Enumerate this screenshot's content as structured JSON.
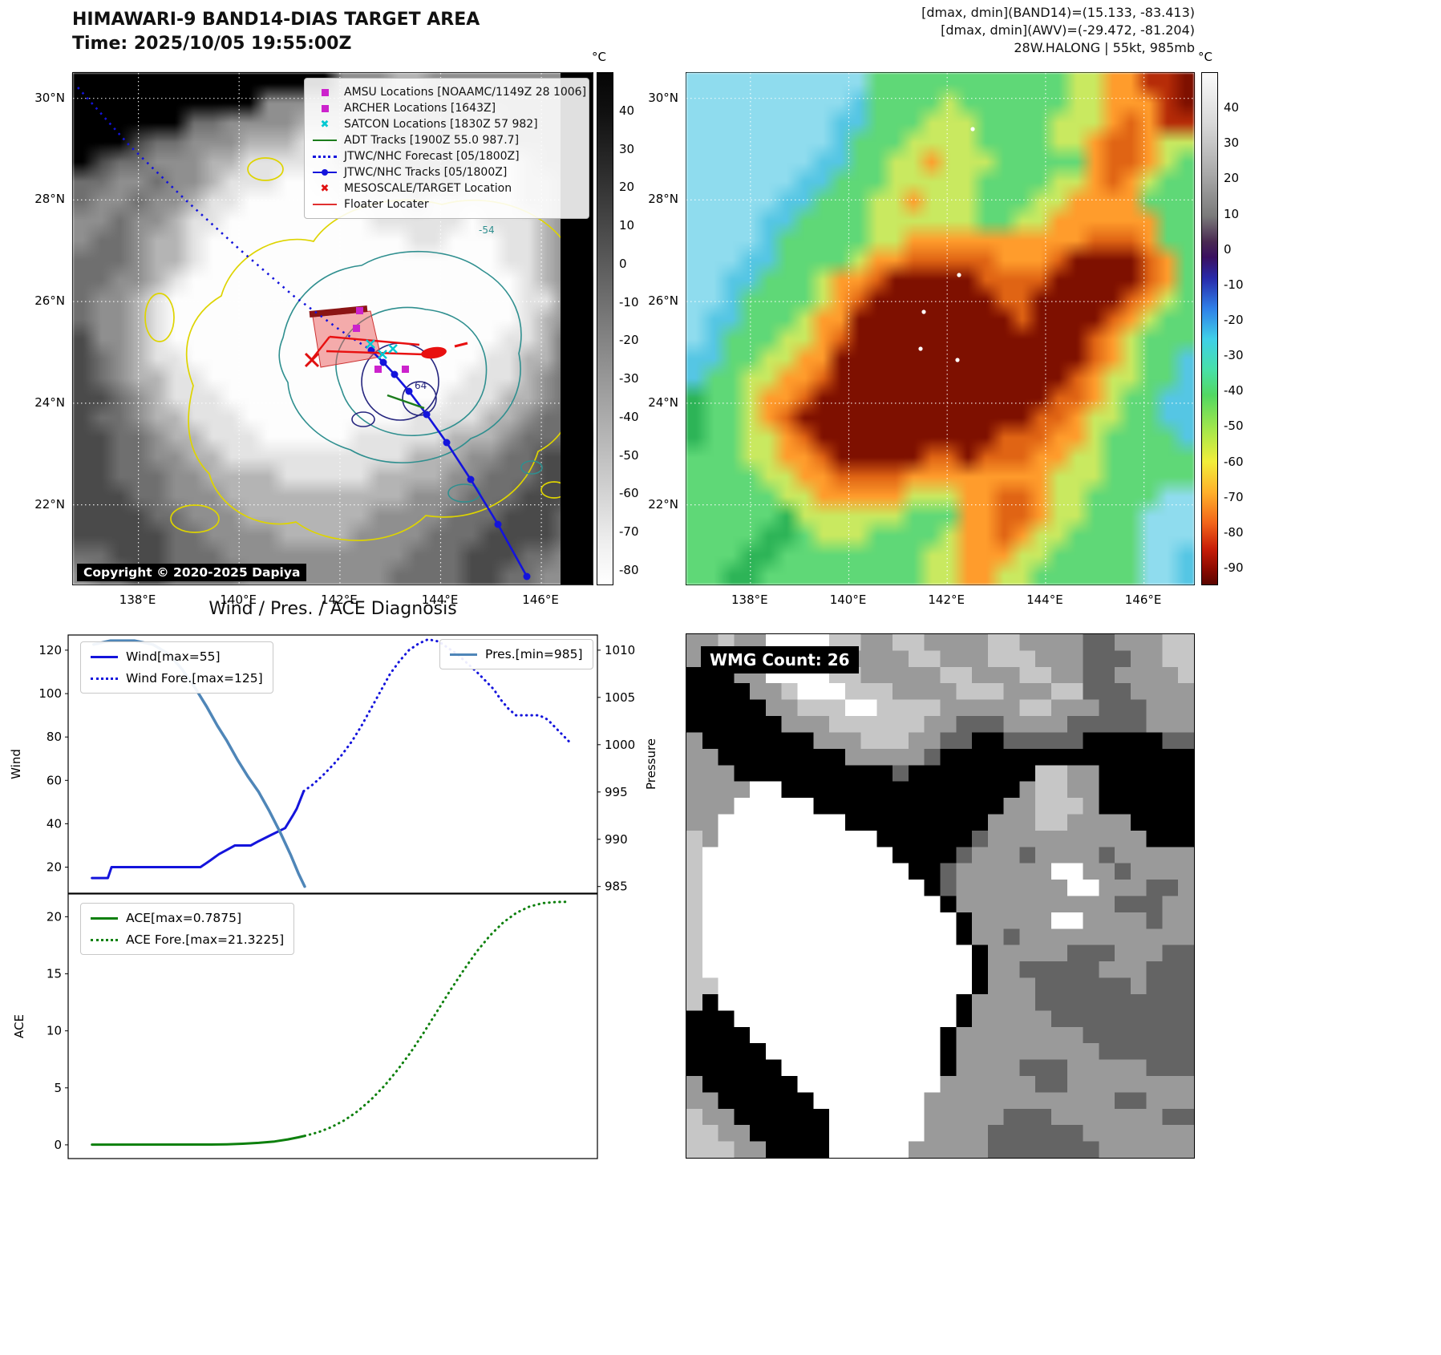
{
  "panel_tl": {
    "title_line1": "HIMAWARI-9 BAND14-DIAS TARGET AREA",
    "title_line2": "Time: 2025/10/05 19:55:00Z",
    "copyright": "Copyright © 2020-2025 Dapiya",
    "contour_labels": [
      "-54",
      "64"
    ],
    "legend": [
      {
        "marker": "square",
        "color": "#cc22cc",
        "label": "AMSU Locations [NOAAMC/1149Z 28 1006]"
      },
      {
        "marker": "square",
        "color": "#cc22cc",
        "label": "ARCHER Locations [1643Z]"
      },
      {
        "marker": "x",
        "color": "#00c8d2",
        "label": "SATCON Locations [1830Z 57 982]"
      },
      {
        "marker": "line",
        "color": "#1c7c1c",
        "label": "ADT Tracks [1900Z 55.0 987.7]"
      },
      {
        "marker": "dotted",
        "color": "#1414dc",
        "label": "JTWC/NHC Forecast [05/1800Z]"
      },
      {
        "marker": "line-dot",
        "color": "#1414dc",
        "label": "JTWC/NHC Tracks [05/1800Z]"
      },
      {
        "marker": "x",
        "color": "#e01010",
        "label": "MESOSCALE/TARGET Location"
      },
      {
        "marker": "line",
        "color": "#e03030",
        "label": "Floater Locater"
      }
    ],
    "lon_range": [
      136.7,
      147.05
    ],
    "lat_range": [
      30.5,
      20.4
    ],
    "lon_ticks": [
      {
        "v": 138,
        "label": "138°E"
      },
      {
        "v": 140,
        "label": "140°E"
      },
      {
        "v": 142,
        "label": "142°E"
      },
      {
        "v": 144,
        "label": "144°E"
      },
      {
        "v": 146,
        "label": "146°E"
      }
    ],
    "lat_ticks": [
      {
        "v": 30,
        "label": "30°N"
      },
      {
        "v": 28,
        "label": "28°N"
      },
      {
        "v": 26,
        "label": "26°N"
      },
      {
        "v": 24,
        "label": "24°N"
      },
      {
        "v": 22,
        "label": "22°N"
      }
    ],
    "colorbar": {
      "unit": "°C",
      "range": [
        50,
        -84
      ],
      "ticks": [
        40,
        30,
        20,
        10,
        0,
        -10,
        -20,
        -30,
        -40,
        -50,
        -60,
        -70,
        -80
      ],
      "gradient": [
        [
          0,
          "#050505"
        ],
        [
          8,
          "#111111"
        ],
        [
          20,
          "#2e2e2e"
        ],
        [
          35,
          "#555555"
        ],
        [
          50,
          "#7e7e7e"
        ],
        [
          65,
          "#a5a5a5"
        ],
        [
          80,
          "#cdcdcd"
        ],
        [
          92,
          "#efefef"
        ],
        [
          100,
          "#ffffff"
        ]
      ]
    },
    "image_grid": {
      "bg": "#8f8f8f",
      "palette": {
        "K": "#000000",
        "d": "#4a4a4a",
        "g": "#6f6f6f",
        "m": "#8f8f8f",
        "l": "#b4b4b4",
        "w": "#e3e3e3",
        "W": "#fdfdfd"
      },
      "rows": [
        "KKKKKKKKKKKKKKmmmllmmmmmmmmm",
        "KKKKKKKKKKmmmmmlllmmmmmmmmmm",
        "KKKKKKggmmmmlllllmmmmllmmmmm",
        "KKKdggmmmlllwwllmmmmmllmmmmm",
        "Kdggmmmllwwwwwlllmmmmmwwlmmm",
        "ggmmgmmlwwwWWwwwllmmmwwwllmm",
        "gmmgmmlwwWWWWWwwwwlwwwwwllmm",
        "mmgmmlwwWWWWWWWWwwwwwWwwwlmm",
        "mggmllwWWWWWWWWWWWwwWWWwwlmm",
        "gggmllwWWWWWWWWWWWWWWWWwwlmm",
        "ggmmlwWWWWWWWWWWWWWWWWWWwlmg",
        "gmmlwWWWWWWWWWWWWWWWWWWWwwmg",
        "gmmlwWWWWWWWWWWWWWWWWWWWwlmg",
        "dmmlwWWWWWWWWWWWWWWWWWWwwlgg",
        "dgmlwwWWWWWWWWWWWWWWWWwwllgg",
        "dgmllwwWWWWWWWWWWWWWWwwwlmgg",
        "ddgmlwwwWWWWWWWWWWWWwwwllmgg",
        "dggmllwwwWWWWWWWWWwwwwllmggg",
        "ddggmllwwwWWWWWwwwwwlllmgggd",
        "ddggmmllwwwwwwwwwwlllmmggddg",
        "ddgggmmllllwwwwwllllmmgggddg",
        "dddggmmmllllllllllmmmgggdddg",
        "ddddggmmmlllllllmmmmgggdddgg",
        "dddddggmmmmllllmmmmgggddddgg",
        "ggdddgggmmmmmmmmmmgggdddggmm",
        "mggddggggmmmmmmmmggggddggmmm"
      ]
    }
  },
  "panel_tr": {
    "header1": "[dmax, dmin](BAND14)=(15.133, -83.413)",
    "header2": "[dmax, dmin](AWV)=(-29.472, -81.204)",
    "header3": "28W.HALONG | 55kt, 985mb",
    "lon_range": [
      136.7,
      147.05
    ],
    "lat_range": [
      30.5,
      20.4
    ],
    "lon_ticks": [
      {
        "v": 138,
        "label": "138°E"
      },
      {
        "v": 140,
        "label": "140°E"
      },
      {
        "v": 142,
        "label": "142°E"
      },
      {
        "v": 144,
        "label": "144°E"
      },
      {
        "v": 146,
        "label": "146°E"
      }
    ],
    "lat_ticks": [
      {
        "v": 30,
        "label": "30°N"
      },
      {
        "v": 28,
        "label": "28°N"
      },
      {
        "v": 26,
        "label": "26°N"
      },
      {
        "v": 24,
        "label": "24°N"
      },
      {
        "v": 22,
        "label": "22°N"
      }
    ],
    "colorbar": {
      "unit": "°C",
      "range": [
        50,
        -95
      ],
      "ticks": [
        40,
        30,
        20,
        10,
        0,
        -10,
        -20,
        -30,
        -40,
        -50,
        -60,
        -70,
        -80,
        -90
      ],
      "gradient": [
        [
          0,
          "#fafafa"
        ],
        [
          10,
          "#d8d8d8"
        ],
        [
          20,
          "#a8a8a8"
        ],
        [
          28,
          "#7a7a7a"
        ],
        [
          33,
          "#4a2a52"
        ],
        [
          36,
          "#3a1060"
        ],
        [
          40,
          "#2828a8"
        ],
        [
          46,
          "#2f7fe8"
        ],
        [
          52,
          "#3fd0e8"
        ],
        [
          58,
          "#48e0a8"
        ],
        [
          63,
          "#52d862"
        ],
        [
          70,
          "#a8e84a"
        ],
        [
          76,
          "#f2ee3a"
        ],
        [
          82,
          "#ffb02a"
        ],
        [
          88,
          "#f2641a"
        ],
        [
          93,
          "#c81e08"
        ],
        [
          97,
          "#8c0a00"
        ],
        [
          100,
          "#5a0500"
        ]
      ]
    },
    "image_grid": {
      "bg": "#5fd877",
      "palette": {
        "c": "#8fdcee",
        "C": "#55c6e4",
        "g": "#5fd877",
        "G": "#2db457",
        "y": "#c9e960",
        "o": "#ff9c2c",
        "O": "#e06414",
        "r": "#b62c08",
        "R": "#7e1000"
      },
      "rows": [
        "ccccccccccgggggggggggyyoorrR",
        "cccccccccCggggyggggggyyooorR",
        "ccccccccCCgggyyyggggyyyoOorr",
        "ccccccccCgggyyyyggggyyoOOoyy",
        "cccccccCCggyyoyyygggggoOOoyg",
        "ccccccCCgggyyyyyggggyyoOoygg",
        "cccccCCgggyyoyyygggyyooooggg",
        "ccccCCggggyyyyyyggyyoooooogg",
        "ccccCgggggyyooooooooooOOOogg",
        "cccCCggggyooOOOOOoooORRRROog",
        "ccCCgggyooORRRRROOOORRRRROog",
        "ccCggggyoORRRRRRROORRRRROoyg",
        "cCCgggyooRRRRRRRRRORRRROoygg",
        "cCgggyyoORRRRRRRRRRRRROoyggg",
        "CCggyyooRRRRRRRRRRRRRROoyggC",
        "CggyyooORRRRRRRRRRRRROoyyggC",
        "GggyooORRRRRRRRRRRRROOoyggCC",
        "GggyoORRRRRRRRRRRRROOoyyggCC",
        "GggyyoORRRRRRRRRROOOooyggggC",
        "gggyyooORRRRROOROOOooyyggggg",
        "ggggyyooOOOOooooooooyyyggggg",
        "gggggyyoooooyyyooOOoyyggggcc",
        "gggggGyyyyyygggooOOoyygggccc",
        "ggggGGgyyyggggyooOoyyggggccc",
        "gggGGggggggggyyoooyygggggccC",
        "ggGGgggggggggyyooyyggggggccC"
      ]
    }
  },
  "wmg": {
    "label": "WMG Count: 26",
    "image_grid": {
      "bg": "#9a9a9a",
      "palette": {
        "w": "#ffffff",
        "l": "#c6c6c6",
        "g": "#9a9a9a",
        "d": "#646464",
        "K": "#000000"
      },
      "rows": [
        "gglggwwwwllggllggggllggggddgggll",
        "glggwwwwwlggggllggglllgggdddggll",
        "KKKggwwwwllgggggllgggllggddggggl",
        "KKKKgglwwwlllgggglllggglldddgggg",
        "KKKKKgglllwwllllgggggllgggdddggg",
        "KKKKKKgggllllllggdddggggdddddggg",
        "gKKKKKKKggglllggddKKdddddKKKKKdd",
        "ggKKKKKKKKgggggdKKKKKKKKKKKKKKKK",
        "gggKKKKKKKKKKdKKKKKKKKllggKKKKKK",
        "ggggwwKKKKKKKKKKKKKKKgllggKKKKKK",
        "gggwwwwwKKKKKKKKKKKKgglllgKKKKKK",
        "ggwwwwwwwwKKKKKKKKKgggllggggKKKK",
        "lgwwwwwwwwwwKKKKKKdggggggggggKKK",
        "lwwwwwwwwwwwwKKKKdgggdggggdggggg",
        "lwwwwwwwwwwwwwKKdggggggwwggdgggg",
        "lwwwwwwwwwwwwwwKdgggggggwwgggddg",
        "lwwwwwwwwwwwwwwwKggggggggggdddgg",
        "lwwwwwwwwwwwwwwwwKgggggwwggggdgg",
        "lwwwwwwwwwwwwwwwwKggdggggggggggg",
        "lwwwwwwwwwwwwwwwwwKgggggdddgggdd",
        "lwwwwwwwwwwwwwwwwwKggdddddgggddd",
        "llwwwwwwwwwwwwwwwwKgggddddddgddd",
        "lKwwwwwwwwwwwwwwwKggggdddddddddd",
        "KKKwwwwwwwwwwwwwwKgggggddddddddd",
        "KKKKwwwwwwwwwwwwKggggggggddddddd",
        "KKKKKwwwwwwwwwwwKgggggggggdddddd",
        "KKKKKKwwwwwwwwwwKggggdddgggggddd",
        "gKKKKKKwwwwwwwwwggggggddgggggggg",
        "ggKKKKKKwwwwwwwggggggggggggddggg",
        "lggKKKKKKwwwwwwgggggdddgggggggdd",
        "llggKKKKKwwwwwwggggddddddggggggg",
        "lllggKKKKwwwwwgggggdddddddgggggg"
      ]
    }
  },
  "chart_data": [
    {
      "type": "line",
      "title": "Wind / Pres. / ACE Diagnosis",
      "xlim": [
        0,
        1
      ],
      "ylabel": "Wind",
      "ylim": [
        8,
        127
      ],
      "yticks": [
        20,
        40,
        60,
        80,
        100,
        120
      ],
      "y2label": "Pressure",
      "y2lim": [
        984.3,
        1011.6
      ],
      "y2ticks": [
        985,
        990,
        995,
        1000,
        1005,
        1010
      ],
      "series": [
        {
          "name": "Wind[max=55]",
          "style": "solid",
          "color": "#1414dc",
          "width": 3,
          "axis": "left",
          "points": [
            [
              0.045,
              15
            ],
            [
              0.075,
              15
            ],
            [
              0.082,
              20
            ],
            [
              0.25,
              20
            ],
            [
              0.268,
              23
            ],
            [
              0.285,
              26
            ],
            [
              0.3,
              28
            ],
            [
              0.315,
              30
            ],
            [
              0.345,
              30
            ],
            [
              0.36,
              32
            ],
            [
              0.385,
              35
            ],
            [
              0.41,
              38
            ],
            [
              0.425,
              44
            ],
            [
              0.432,
              47
            ],
            [
              0.445,
              55
            ]
          ]
        },
        {
          "name": "Wind Fore.[max=125]",
          "style": "dotted",
          "color": "#1414dc",
          "width": 3,
          "axis": "left",
          "points": [
            [
              0.445,
              55
            ],
            [
              0.462,
              58
            ],
            [
              0.48,
              62
            ],
            [
              0.5,
              67
            ],
            [
              0.518,
              72
            ],
            [
              0.536,
              78
            ],
            [
              0.554,
              85
            ],
            [
              0.572,
              93
            ],
            [
              0.59,
              101
            ],
            [
              0.608,
              109
            ],
            [
              0.626,
              115
            ],
            [
              0.644,
              120
            ],
            [
              0.662,
              123
            ],
            [
              0.68,
              125
            ],
            [
              0.7,
              124
            ],
            [
              0.718,
              121
            ],
            [
              0.736,
              118
            ],
            [
              0.754,
              114
            ],
            [
              0.772,
              110
            ],
            [
              0.788,
              106
            ],
            [
              0.804,
              102
            ],
            [
              0.818,
              97
            ],
            [
              0.832,
              93
            ],
            [
              0.846,
              90
            ],
            [
              0.868,
              90
            ],
            [
              0.89,
              90
            ],
            [
              0.906,
              88
            ],
            [
              0.922,
              84
            ],
            [
              0.938,
              80
            ],
            [
              0.95,
              77
            ]
          ]
        },
        {
          "name": "Pres.[min=985]",
          "style": "solid",
          "color": "#4f86b8",
          "width": 3.5,
          "axis": "right",
          "points": [
            [
              0.048,
              1010.6
            ],
            [
              0.08,
              1011
            ],
            [
              0.125,
              1011
            ],
            [
              0.16,
              1010.6
            ],
            [
              0.19,
              1009.6
            ],
            [
              0.215,
              1008
            ],
            [
              0.24,
              1006
            ],
            [
              0.262,
              1004
            ],
            [
              0.282,
              1002
            ],
            [
              0.3,
              1000.4
            ],
            [
              0.32,
              998.4
            ],
            [
              0.34,
              996.6
            ],
            [
              0.36,
              995
            ],
            [
              0.38,
              993
            ],
            [
              0.4,
              990.8
            ],
            [
              0.42,
              988.4
            ],
            [
              0.435,
              986.4
            ],
            [
              0.447,
              985
            ]
          ]
        }
      ]
    },
    {
      "type": "line",
      "xlim": [
        0,
        1
      ],
      "ylabel": "ACE",
      "ylim": [
        -1.2,
        22
      ],
      "yticks": [
        0,
        5,
        10,
        15,
        20
      ],
      "series": [
        {
          "name": "ACE[max=0.7875]",
          "style": "solid",
          "color": "#0d800d",
          "width": 3,
          "points": [
            [
              0.045,
              0.02
            ],
            [
              0.27,
              0.03
            ],
            [
              0.3,
              0.05
            ],
            [
              0.33,
              0.1
            ],
            [
              0.36,
              0.18
            ],
            [
              0.39,
              0.3
            ],
            [
              0.415,
              0.48
            ],
            [
              0.435,
              0.66
            ],
            [
              0.447,
              0.79
            ]
          ]
        },
        {
          "name": "ACE Fore.[max=21.3225]",
          "style": "dotted",
          "color": "#0d800d",
          "width": 3,
          "points": [
            [
              0.447,
              0.79
            ],
            [
              0.472,
              1.1
            ],
            [
              0.497,
              1.55
            ],
            [
              0.522,
              2.15
            ],
            [
              0.547,
              2.95
            ],
            [
              0.572,
              3.95
            ],
            [
              0.597,
              5.15
            ],
            [
              0.622,
              6.55
            ],
            [
              0.647,
              8.1
            ],
            [
              0.672,
              9.85
            ],
            [
              0.697,
              11.7
            ],
            [
              0.722,
              13.55
            ],
            [
              0.747,
              15.3
            ],
            [
              0.772,
              16.95
            ],
            [
              0.797,
              18.35
            ],
            [
              0.822,
              19.5
            ],
            [
              0.847,
              20.35
            ],
            [
              0.872,
              20.9
            ],
            [
              0.897,
              21.2
            ],
            [
              0.922,
              21.3
            ],
            [
              0.948,
              21.32
            ]
          ]
        }
      ]
    }
  ]
}
